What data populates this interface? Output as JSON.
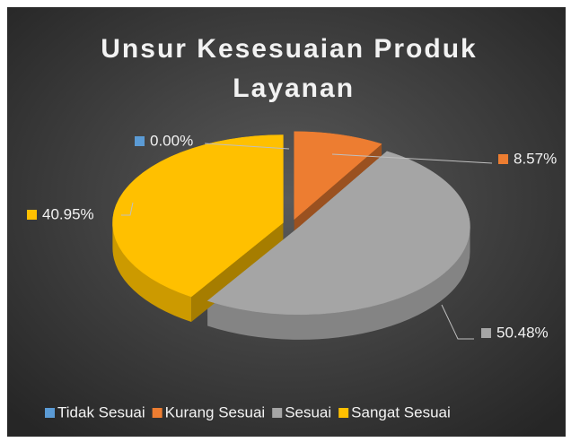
{
  "chart_data": {
    "type": "pie",
    "title": "Unsur Kesesuaian Produk Layanan",
    "categories": [
      "Tidak Sesuai",
      "Kurang Sesuai",
      "Sesuai",
      "Sangat Sesuai"
    ],
    "values": [
      0,
      8.57,
      50.48,
      40.95
    ],
    "value_labels": [
      "0.00%",
      "8.57%",
      "50.48%",
      "40.95%"
    ],
    "colors": [
      "#5b9bd5",
      "#ed7d31",
      "#a5a5a5",
      "#ffc000"
    ],
    "legend": "bottom"
  }
}
